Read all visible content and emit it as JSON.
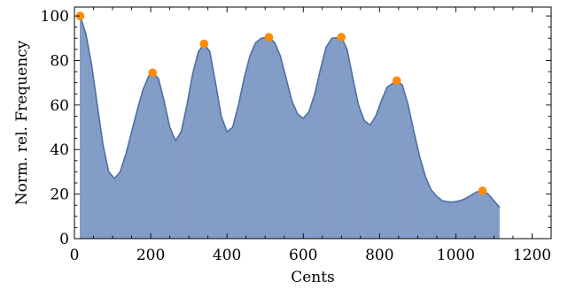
{
  "chart_data": {
    "type": "area",
    "xlabel": "Cents",
    "ylabel": "Norm. rel. Frequency",
    "xlim": [
      0,
      1250
    ],
    "ylim": [
      0,
      104
    ],
    "x_ticks": [
      0,
      200,
      400,
      600,
      800,
      1000,
      1200
    ],
    "y_ticks": [
      0,
      20,
      40,
      60,
      80,
      100
    ],
    "grid": false,
    "legend": "none",
    "colors": {
      "fill": "#8ca4cc",
      "bars": "#7f9ac6",
      "line": "#4e6fa3",
      "peaks": "#ff8c00",
      "frame": "#000000"
    },
    "series": [
      {
        "x": [
          15,
          30,
          45,
          60,
          75,
          90,
          105,
          120,
          135,
          150,
          165,
          180,
          195,
          205,
          220,
          235,
          250,
          265,
          280,
          295,
          310,
          325,
          340,
          355,
          370,
          385,
          400,
          415,
          430,
          445,
          460,
          475,
          490,
          510,
          525,
          540,
          555,
          570,
          585,
          600,
          615,
          630,
          645,
          660,
          675,
          700,
          715,
          730,
          745,
          760,
          775,
          790,
          805,
          820,
          845,
          860,
          875,
          890,
          905,
          920,
          935,
          950,
          965,
          980,
          995,
          1010,
          1025,
          1040,
          1055,
          1070,
          1085,
          1100,
          1115
        ],
        "values": [
          100,
          92,
          78,
          60,
          42,
          30,
          27,
          30,
          38,
          48,
          58,
          67,
          73,
          74.5,
          72,
          62,
          50,
          44,
          48,
          60,
          74,
          84,
          87.5,
          84,
          70,
          55,
          48,
          50,
          60,
          72,
          82,
          88,
          90,
          90.5,
          88,
          82,
          72,
          62,
          56,
          54,
          57,
          65,
          76,
          86,
          90,
          90.5,
          85,
          72,
          60,
          53,
          51,
          55,
          62,
          68,
          71,
          69,
          60,
          48,
          37,
          28,
          22,
          19,
          17,
          16.5,
          16.5,
          17,
          18,
          19.5,
          21,
          21.5,
          20,
          17,
          14
        ]
      }
    ],
    "peaks": {
      "x": [
        15,
        205,
        340,
        510,
        700,
        845,
        1070
      ],
      "values": [
        100,
        74.5,
        87.5,
        90.5,
        90.5,
        71,
        21.5
      ]
    }
  }
}
